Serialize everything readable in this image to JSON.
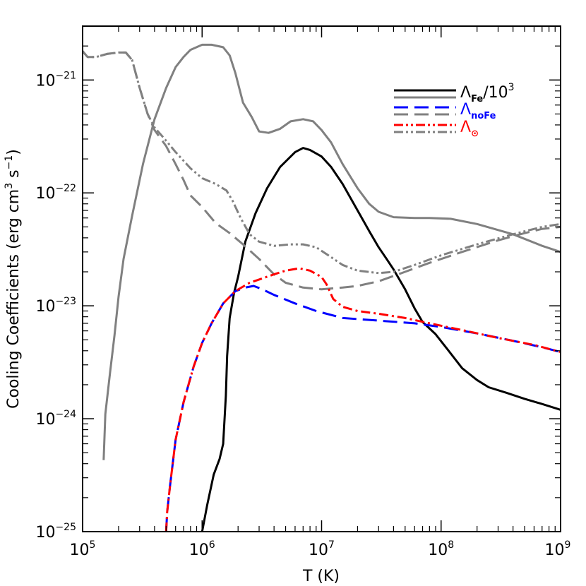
{
  "chart_data": {
    "type": "line",
    "xlabel": "T (K)",
    "ylabel": "Cooling Coefficients (erg cm^3 s^-1)",
    "ylabel_parts": {
      "main": "Cooling Coefficients (erg cm",
      "exp1": "3",
      "mid": " s",
      "exp2": "−1",
      "end": ")"
    },
    "x_scale": "log",
    "y_scale": "log",
    "xlim": [
      100000,
      1000000000
    ],
    "ylim": [
      1e-25,
      3e-21
    ],
    "x_ticks": [
      {
        "base": "10",
        "exp": "5",
        "value": 100000
      },
      {
        "base": "10",
        "exp": "6",
        "value": 1000000
      },
      {
        "base": "10",
        "exp": "7",
        "value": 10000000
      },
      {
        "base": "10",
        "exp": "8",
        "value": 100000000
      },
      {
        "base": "10",
        "exp": "9",
        "value": 1000000000
      }
    ],
    "y_ticks": [
      {
        "base": "10",
        "exp": "−25",
        "value": 1e-25
      },
      {
        "base": "10",
        "exp": "−24",
        "value": 1e-24
      },
      {
        "base": "10",
        "exp": "−23",
        "value": 1e-23
      },
      {
        "base": "10",
        "exp": "−22",
        "value": 1e-22
      },
      {
        "base": "10",
        "exp": "−21",
        "value": 1e-21
      }
    ],
    "legend": {
      "placement": "top-right",
      "entries": [
        {
          "main": "Λ",
          "sub": "Fe",
          "suffix": "/10",
          "sup": "3",
          "color": "#000000",
          "color2": "#808080",
          "dash": "solid"
        },
        {
          "main": "Λ",
          "sub": "noFe",
          "suffix": "",
          "sup": "",
          "color": "#0000ff",
          "color2": "#808080",
          "dash": "dash"
        },
        {
          "main": "Λ",
          "sub": "⊙",
          "suffix": "",
          "sup": "",
          "color": "#ff0000",
          "color2": "#808080",
          "dash": "dashdotdot"
        }
      ]
    },
    "series": [
      {
        "color": "#808080",
        "dash": "solid",
        "points": [
          [
            150000,
            4.3e-25
          ],
          [
            155000,
            1.1e-24
          ],
          [
            170000,
            2.6e-24
          ],
          [
            185000,
            5.5e-24
          ],
          [
            200000,
            1.2e-23
          ],
          [
            220000,
            2.6e-23
          ],
          [
            260000,
            6.3e-23
          ],
          [
            320000,
            1.8e-22
          ],
          [
            400000,
            4.5e-22
          ],
          [
            500000,
            8.5e-22
          ],
          [
            600000,
            1.3e-21
          ],
          [
            700000,
            1.6e-21
          ],
          [
            800000,
            1.85e-21
          ],
          [
            1000000,
            2.05e-21
          ],
          [
            1200000,
            2.05e-21
          ],
          [
            1500000,
            1.95e-21
          ],
          [
            1700000,
            1.65e-21
          ],
          [
            1900000,
            1.15e-21
          ],
          [
            2200000,
            6.3e-22
          ],
          [
            2600000,
            4.7e-22
          ],
          [
            3000000,
            3.5e-22
          ],
          [
            3600000,
            3.4e-22
          ],
          [
            4500000,
            3.7e-22
          ],
          [
            5500000,
            4.3e-22
          ],
          [
            7000000,
            4.5e-22
          ],
          [
            8500000,
            4.3e-22
          ],
          [
            10000000,
            3.6e-22
          ],
          [
            12000000,
            2.8e-22
          ],
          [
            15000000,
            1.8e-22
          ],
          [
            20000000,
            1.1e-22
          ],
          [
            25000000,
            8e-23
          ],
          [
            30000000,
            6.8e-23
          ],
          [
            40000000,
            6.1e-23
          ],
          [
            60000000,
            6e-23
          ],
          [
            80000000,
            6e-23
          ],
          [
            120000000,
            5.9e-23
          ],
          [
            200000000,
            5.3e-23
          ],
          [
            400000000,
            4.3e-23
          ],
          [
            700000000,
            3.4e-23
          ],
          [
            1000000000,
            3e-23
          ]
        ]
      },
      {
        "color": "#000000",
        "dash": "solid",
        "points": [
          [
            1000000,
            1e-25
          ],
          [
            1100000,
            1.7e-25
          ],
          [
            1250000,
            3.2e-25
          ],
          [
            1400000,
            4.4e-25
          ],
          [
            1500000,
            6e-25
          ],
          [
            1580000,
            1.6e-24
          ],
          [
            1620000,
            3.6e-24
          ],
          [
            1700000,
            7.8e-24
          ],
          [
            1850000,
            1.3e-23
          ],
          [
            2000000,
            1.8e-23
          ],
          [
            2300000,
            3.7e-23
          ],
          [
            2800000,
            6.6e-23
          ],
          [
            3500000,
            1.1e-22
          ],
          [
            4500000,
            1.7e-22
          ],
          [
            6000000,
            2.3e-22
          ],
          [
            7000000,
            2.5e-22
          ],
          [
            8000000,
            2.4e-22
          ],
          [
            10000000,
            2.1e-22
          ],
          [
            12000000,
            1.7e-22
          ],
          [
            15000000,
            1.2e-22
          ],
          [
            20000000,
            7e-23
          ],
          [
            25000000,
            4.6e-23
          ],
          [
            30000000,
            3.3e-23
          ],
          [
            35000000,
            2.6e-23
          ],
          [
            40000000,
            2.1e-23
          ],
          [
            50000000,
            1.4e-23
          ],
          [
            60000000,
            9.5e-24
          ],
          [
            70000000,
            7.2e-24
          ],
          [
            90000000,
            5.6e-24
          ],
          [
            120000000,
            3.8e-24
          ],
          [
            150000000,
            2.8e-24
          ],
          [
            200000000,
            2.2e-24
          ],
          [
            250000000,
            1.9e-24
          ],
          [
            350000000,
            1.7e-24
          ],
          [
            500000000,
            1.5e-24
          ],
          [
            700000000,
            1.35e-24
          ],
          [
            1000000000,
            1.2e-24
          ]
        ]
      },
      {
        "color": "#808080",
        "dash": "dash",
        "points": [
          [
            100000,
            1.8e-21
          ],
          [
            110000,
            1.6e-21
          ],
          [
            130000,
            1.6e-21
          ],
          [
            160000,
            1.7e-21
          ],
          [
            200000,
            1.75e-21
          ],
          [
            230000,
            1.75e-21
          ],
          [
            260000,
            1.5e-21
          ],
          [
            300000,
            8.5e-22
          ],
          [
            350000,
            5e-22
          ],
          [
            400000,
            3.6e-22
          ],
          [
            500000,
            2.6e-22
          ],
          [
            600000,
            1.8e-22
          ],
          [
            700000,
            1.3e-22
          ],
          [
            800000,
            9.5e-23
          ],
          [
            1000000,
            7.5e-23
          ],
          [
            1300000,
            5.4e-23
          ],
          [
            1700000,
            4.4e-23
          ],
          [
            2200000,
            3.5e-23
          ],
          [
            3000000,
            2.6e-23
          ],
          [
            4000000,
            1.9e-23
          ],
          [
            5000000,
            1.6e-23
          ],
          [
            7000000,
            1.45e-23
          ],
          [
            10000000,
            1.4e-23
          ],
          [
            15000000,
            1.45e-23
          ],
          [
            20000000,
            1.5e-23
          ],
          [
            30000000,
            1.65e-23
          ],
          [
            50000000,
            2e-23
          ],
          [
            80000000,
            2.4e-23
          ],
          [
            150000000,
            3e-23
          ],
          [
            300000000,
            3.8e-23
          ],
          [
            500000000,
            4.4e-23
          ],
          [
            700000000,
            4.8e-23
          ],
          [
            1000000000,
            5e-23
          ]
        ]
      },
      {
        "color": "#808080",
        "dash": "dashdotdot",
        "points": [
          [
            100000,
            1.8e-21
          ],
          [
            110000,
            1.6e-21
          ],
          [
            130000,
            1.6e-21
          ],
          [
            160000,
            1.7e-21
          ],
          [
            200000,
            1.75e-21
          ],
          [
            230000,
            1.75e-21
          ],
          [
            260000,
            1.5e-21
          ],
          [
            300000,
            8.5e-22
          ],
          [
            350000,
            5e-22
          ],
          [
            400000,
            3.8e-22
          ],
          [
            500000,
            2.9e-22
          ],
          [
            600000,
            2.3e-22
          ],
          [
            800000,
            1.65e-22
          ],
          [
            1000000,
            1.35e-22
          ],
          [
            1300000,
            1.2e-22
          ],
          [
            1600000,
            1.05e-22
          ],
          [
            1800000,
            8.5e-23
          ],
          [
            2100000,
            6e-23
          ],
          [
            2500000,
            4.3e-23
          ],
          [
            3000000,
            3.7e-23
          ],
          [
            4000000,
            3.4e-23
          ],
          [
            5500000,
            3.5e-23
          ],
          [
            7000000,
            3.5e-23
          ],
          [
            9000000,
            3.3e-23
          ],
          [
            12000000,
            2.7e-23
          ],
          [
            15000000,
            2.3e-23
          ],
          [
            20000000,
            2.05e-23
          ],
          [
            30000000,
            1.95e-23
          ],
          [
            40000000,
            2e-23
          ],
          [
            60000000,
            2.3e-23
          ],
          [
            100000000,
            2.8e-23
          ],
          [
            200000000,
            3.5e-23
          ],
          [
            400000000,
            4.3e-23
          ],
          [
            700000000,
            5e-23
          ],
          [
            1000000000,
            5.3e-23
          ]
        ]
      },
      {
        "color": "#0000ff",
        "dash": "dash",
        "points": [
          [
            500000,
            1e-25
          ],
          [
            510000,
            1.5e-25
          ],
          [
            540000,
            2.6e-25
          ],
          [
            600000,
            6.5e-25
          ],
          [
            700000,
            1.4e-24
          ],
          [
            850000,
            2.9e-24
          ],
          [
            1000000,
            4.7e-24
          ],
          [
            1200000,
            7e-24
          ],
          [
            1500000,
            1.05e-23
          ],
          [
            1900000,
            1.35e-23
          ],
          [
            2300000,
            1.45e-23
          ],
          [
            2700000,
            1.5e-23
          ],
          [
            3200000,
            1.4e-23
          ],
          [
            4000000,
            1.25e-23
          ],
          [
            6000000,
            1.05e-23
          ],
          [
            9000000,
            9e-24
          ],
          [
            15000000,
            7.8e-24
          ],
          [
            30000000,
            7.4e-24
          ],
          [
            60000000,
            7e-24
          ],
          [
            100000000,
            6.5e-24
          ],
          [
            200000000,
            5.7e-24
          ],
          [
            400000000,
            4.9e-24
          ],
          [
            700000000,
            4.3e-24
          ],
          [
            1000000000,
            3.9e-24
          ]
        ]
      },
      {
        "color": "#ff0000",
        "dash": "dashdot",
        "points": [
          [
            500000,
            1e-25
          ],
          [
            510000,
            1.5e-25
          ],
          [
            540000,
            2.6e-25
          ],
          [
            600000,
            6.5e-25
          ],
          [
            700000,
            1.4e-24
          ],
          [
            850000,
            2.9e-24
          ],
          [
            1000000,
            4.7e-24
          ],
          [
            1200000,
            7e-24
          ],
          [
            1500000,
            1.05e-23
          ],
          [
            1900000,
            1.35e-23
          ],
          [
            2500000,
            1.6e-23
          ],
          [
            3200000,
            1.75e-23
          ],
          [
            4000000,
            1.9e-23
          ],
          [
            5000000,
            2.05e-23
          ],
          [
            6500000,
            2.15e-23
          ],
          [
            8000000,
            2.05e-23
          ],
          [
            10000000,
            1.8e-23
          ],
          [
            11000000,
            1.55e-23
          ],
          [
            12500000,
            1.15e-23
          ],
          [
            15000000,
            9.8e-24
          ],
          [
            20000000,
            9e-24
          ],
          [
            30000000,
            8.5e-24
          ],
          [
            50000000,
            7.8e-24
          ],
          [
            80000000,
            7e-24
          ],
          [
            150000000,
            6.1e-24
          ],
          [
            300000000,
            5.2e-24
          ],
          [
            600000000,
            4.5e-24
          ],
          [
            1000000000,
            3.9e-24
          ]
        ]
      }
    ]
  }
}
